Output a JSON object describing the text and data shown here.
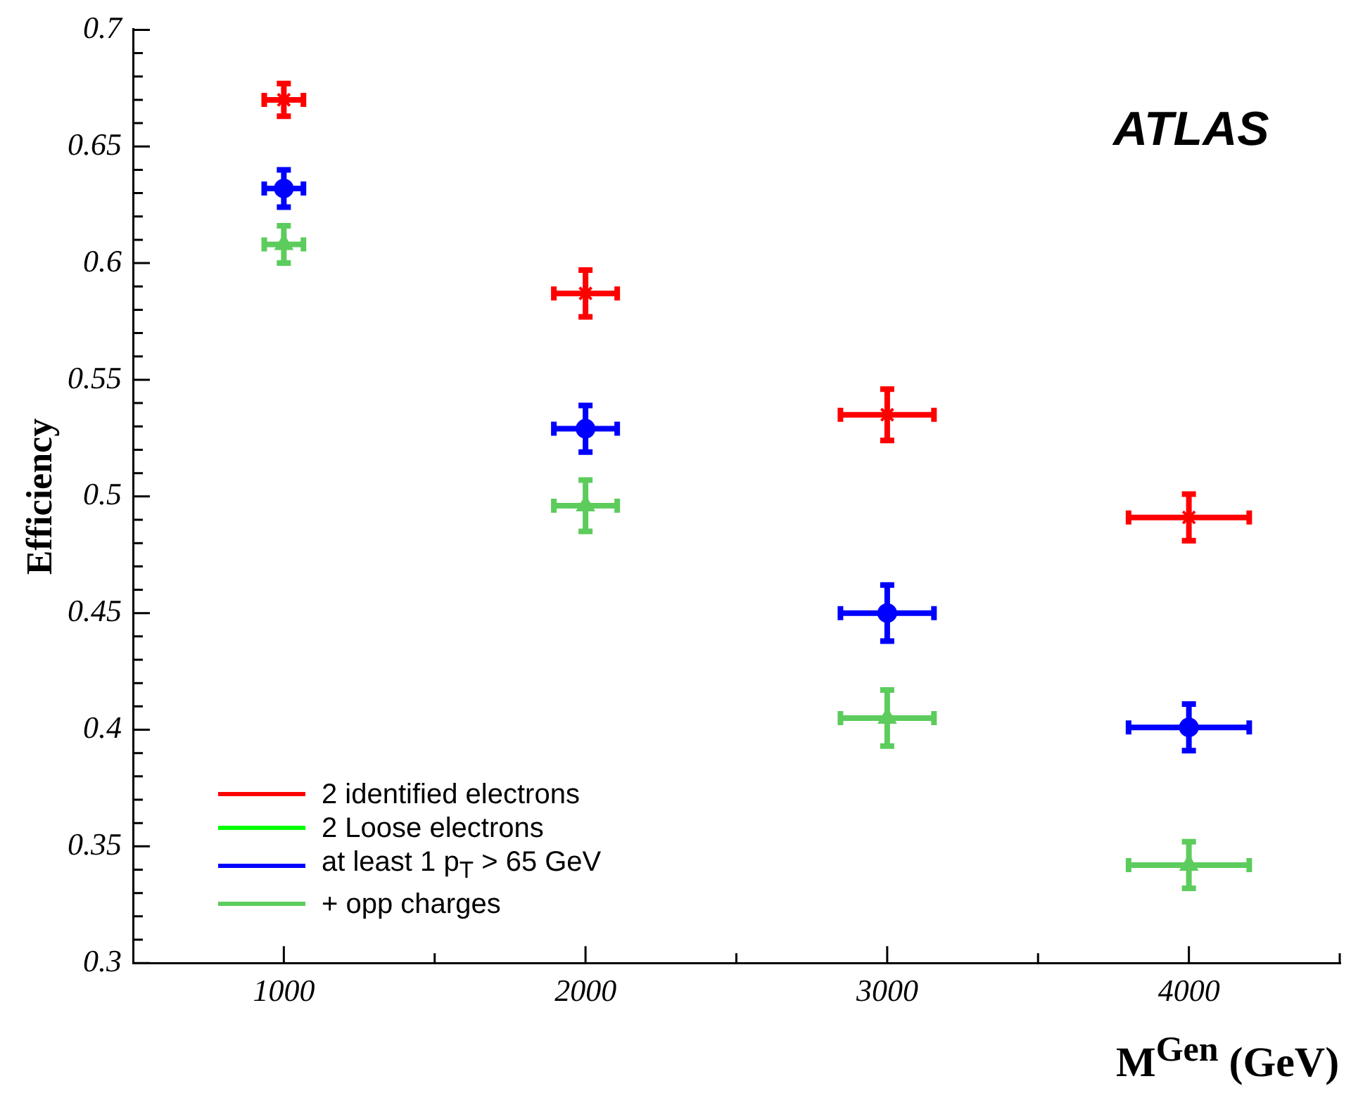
{
  "chart_data": {
    "type": "scatter",
    "xlabel": "M$^{Gen}$ (GeV)",
    "ylabel": "Efficiency",
    "annotations": [
      "ATLAS"
    ],
    "x": [
      1000,
      2000,
      3000,
      4000
    ],
    "series": [
      {
        "name": "2 identified electrons",
        "color": "#ff0000",
        "marker": "cross",
        "values": [
          0.67,
          0.587,
          0.535,
          0.491
        ],
        "errors": [
          0.007,
          0.01,
          0.011,
          0.01
        ],
        "xerrors": [
          65,
          105,
          155,
          200
        ]
      },
      {
        "name": "2 Loose electrons",
        "color": "#00ff00",
        "marker": "triangle",
        "values": [
          null,
          null,
          null,
          null
        ]
      },
      {
        "name": "at least 1 p$_{T}$ > 65 GeV",
        "color": "#0000ff",
        "marker": "circle",
        "values": [
          0.632,
          0.529,
          0.45,
          0.401
        ],
        "errors": [
          0.008,
          0.01,
          0.012,
          0.01
        ],
        "xerrors": [
          65,
          105,
          155,
          200
        ]
      },
      {
        "name": "+ opp charges",
        "color": "#5ccc5c",
        "marker": "triangle",
        "values": [
          0.608,
          0.496,
          0.405,
          0.342
        ],
        "errors": [
          0.008,
          0.011,
          0.012,
          0.01
        ],
        "xerrors": [
          65,
          105,
          155,
          200
        ]
      }
    ],
    "xlim": [
      500,
      4500
    ],
    "xticks": [
      1000,
      {
        "value": 1500,
        "label": null
      },
      2000,
      {
        "value": 2500,
        "label": null
      },
      3000,
      {
        "value": 3500,
        "label": null
      },
      4000,
      {
        "value": 4500,
        "label": null
      }
    ],
    "ylim": [
      0.3,
      0.7
    ],
    "yticks": [
      0.3,
      {
        "value": 0.31,
        "label": null
      },
      {
        "value": 0.32,
        "label": null
      },
      {
        "value": 0.33,
        "label": null
      },
      {
        "value": 0.34,
        "label": null
      },
      0.35,
      {
        "value": 0.36,
        "label": null
      },
      {
        "value": 0.37,
        "label": null
      },
      {
        "value": 0.38,
        "label": null
      },
      {
        "value": 0.39,
        "label": null
      },
      0.4,
      {
        "value": 0.41,
        "label": null
      },
      {
        "value": 0.42,
        "label": null
      },
      {
        "value": 0.43,
        "label": null
      },
      {
        "value": 0.44,
        "label": null
      },
      0.45,
      {
        "value": 0.46,
        "label": null
      },
      {
        "value": 0.47,
        "label": null
      },
      {
        "value": 0.48,
        "label": null
      },
      {
        "value": 0.49,
        "label": null
      },
      0.5,
      {
        "value": 0.51,
        "label": null
      },
      {
        "value": 0.52,
        "label": null
      },
      {
        "value": 0.53,
        "label": null
      },
      {
        "value": 0.54,
        "label": null
      },
      0.55,
      {
        "value": 0.56,
        "label": null
      },
      {
        "value": 0.57,
        "label": null
      },
      {
        "value": 0.58,
        "label": null
      },
      {
        "value": 0.59,
        "label": null
      },
      0.6,
      {
        "value": 0.61,
        "label": null
      },
      {
        "value": 0.62,
        "label": null
      },
      {
        "value": 0.63,
        "label": null
      },
      {
        "value": 0.64,
        "label": null
      },
      0.65,
      {
        "value": 0.66,
        "label": null
      },
      {
        "value": 0.67,
        "label": null
      },
      {
        "value": 0.68,
        "label": null
      },
      {
        "value": 0.69,
        "label": null
      },
      0.7
    ],
    "legend": "bottom left"
  }
}
